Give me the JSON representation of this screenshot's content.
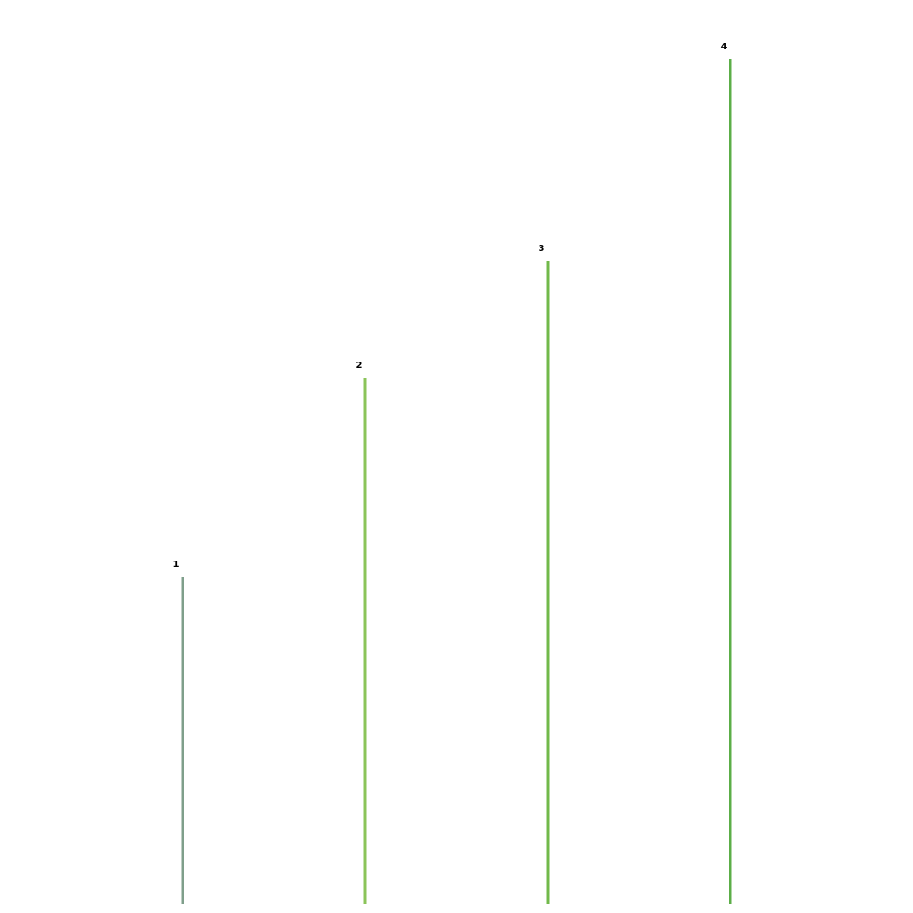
{
  "chart_data": {
    "type": "bar",
    "categories": [
      "1",
      "2",
      "3",
      "4"
    ],
    "values": [
      358,
      576,
      704,
      925
    ],
    "colors": [
      "#7f9f8b",
      "#8bc45a",
      "#71b94a",
      "#5cae48"
    ],
    "ylim": [
      0,
      990
    ]
  }
}
